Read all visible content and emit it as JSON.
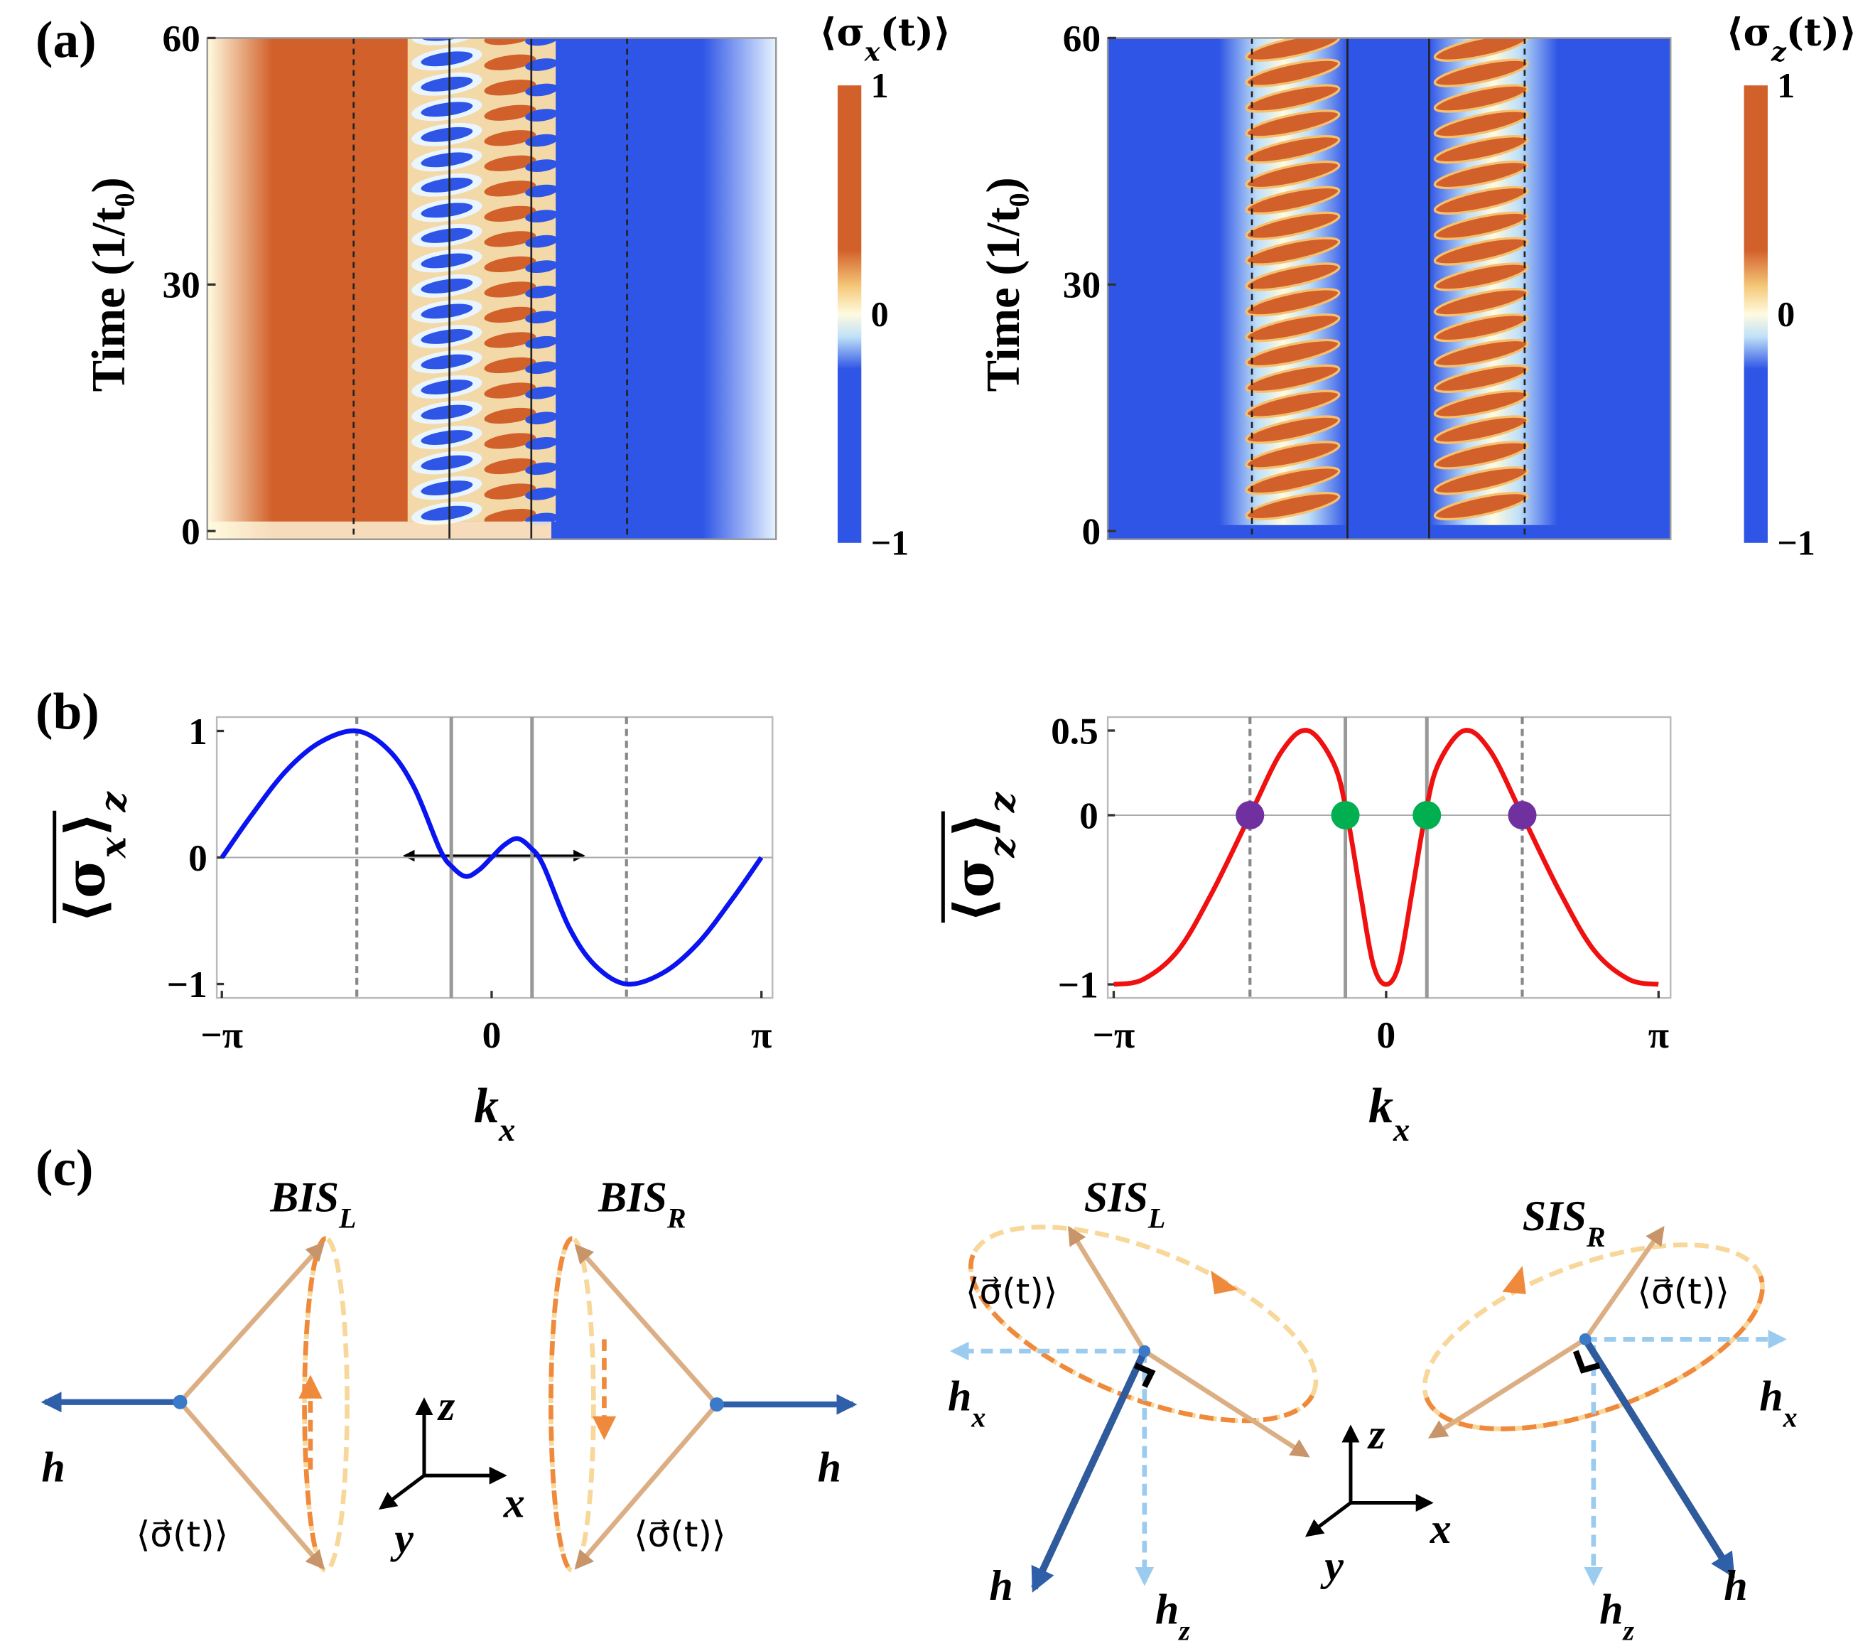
{
  "panels": [
    "(a)",
    "(b)",
    "(c)"
  ],
  "chart_data": [
    {
      "type": "heatmap",
      "ylabel": "Time (1/t₀)",
      "colorbar_title": [
        "⟨σ",
        "x",
        "(t)⟩"
      ],
      "xlim": [
        -3.25,
        3.28
      ],
      "ylim": [
        -1,
        60
      ],
      "yticks": [
        0,
        30,
        60
      ],
      "vlines": [
        {
          "x": -1.57,
          "style": "dashed"
        },
        {
          "x": -0.47,
          "style": "solid"
        },
        {
          "x": 0.47,
          "style": "solid"
        },
        {
          "x": 1.57,
          "style": "dashed"
        }
      ],
      "colorbar": {
        "lim": [
          -1,
          1
        ],
        "ticks": [
          {
            "value": -1,
            "label": "−1"
          },
          0,
          1
        ],
        "colors": [
          "#2f55e6",
          "#fffbe0",
          "#d2602b"
        ]
      }
    },
    {
      "type": "heatmap",
      "ylabel": "Time (1/t₀)",
      "colorbar_title": [
        "⟨σ",
        "z",
        "(t)⟩"
      ],
      "xlim": [
        -3.23,
        3.25
      ],
      "ylim": [
        -1,
        60
      ],
      "yticks": [
        0,
        30,
        60
      ],
      "vlines": [
        {
          "x": -1.57,
          "style": "dashed"
        },
        {
          "x": -0.47,
          "style": "solid"
        },
        {
          "x": 0.47,
          "style": "solid"
        },
        {
          "x": 1.57,
          "style": "dashed"
        }
      ],
      "colorbar": {
        "lim": [
          -1,
          1
        ],
        "ticks": [
          {
            "value": -1,
            "label": "−1"
          },
          0,
          1
        ],
        "colors": [
          "#2f55e6",
          "#fffbe0",
          "#d2602b"
        ]
      }
    },
    {
      "type": "line",
      "ylabel": [
        "⟨σ",
        "x",
        "⟩",
        "z"
      ],
      "xlabel": [
        "k",
        "x"
      ],
      "xlim": [
        -3.2,
        3.27
      ],
      "ylim": [
        -1.11,
        1.11
      ],
      "xticks": [
        {
          "value": -3.14159,
          "label": "−π"
        },
        0,
        {
          "value": 3.14159,
          "label": "π"
        }
      ],
      "yticks": [
        {
          "value": -1,
          "label": "−1"
        },
        0,
        1
      ],
      "vlines": [
        {
          "x": -1.57,
          "style": "dashed"
        },
        {
          "x": -0.47,
          "style": "solid"
        },
        {
          "x": 0.47,
          "style": "solid"
        },
        {
          "x": 1.57,
          "style": "dashed"
        }
      ],
      "color": "#0a14f0",
      "x": [
        -3.14,
        -2.8,
        -2.4,
        -2.0,
        -1.57,
        -1.2,
        -0.9,
        -0.6,
        -0.45,
        -0.3,
        -0.15,
        0,
        0.15,
        0.3,
        0.45,
        0.6,
        0.9,
        1.2,
        1.57,
        2.0,
        2.4,
        2.8,
        3.14
      ],
      "values": [
        0,
        0.33,
        0.68,
        0.91,
        1.0,
        0.85,
        0.55,
        0.06,
        -0.08,
        -0.15,
        -0.1,
        0,
        0.1,
        0.15,
        0.08,
        -0.06,
        -0.55,
        -0.85,
        -1.0,
        -0.91,
        -0.68,
        -0.33,
        0
      ]
    },
    {
      "type": "line",
      "ylabel": [
        "⟨σ",
        "z",
        "⟩",
        "z"
      ],
      "xlabel": [
        "k",
        "x"
      ],
      "xlim": [
        -3.21,
        3.28
      ],
      "ylim": [
        -1.08,
        0.58
      ],
      "xticks": [
        {
          "value": -3.14159,
          "label": "−π"
        },
        0,
        {
          "value": 3.14159,
          "label": "π"
        }
      ],
      "yticks": [
        {
          "value": -1,
          "label": "−1"
        },
        0,
        0.5
      ],
      "vlines": [
        {
          "x": -1.57,
          "style": "dashed"
        },
        {
          "x": -0.47,
          "style": "solid"
        },
        {
          "x": 0.47,
          "style": "solid"
        },
        {
          "x": 1.57,
          "style": "dashed"
        }
      ],
      "color": "#f01010",
      "x": [
        -3.14,
        -2.8,
        -2.4,
        -2.0,
        -1.57,
        -1.2,
        -0.9,
        -0.6,
        -0.45,
        -0.3,
        -0.15,
        0,
        0.15,
        0.3,
        0.45,
        0.6,
        0.9,
        1.2,
        1.57,
        2.0,
        2.4,
        2.8,
        3.14
      ],
      "values": [
        -1,
        -0.97,
        -0.8,
        -0.45,
        0,
        0.38,
        0.5,
        0.3,
        0,
        -0.45,
        -0.88,
        -1,
        -0.88,
        -0.45,
        0,
        0.3,
        0.5,
        0.38,
        0,
        -0.45,
        -0.8,
        -0.97,
        -1
      ],
      "markers": [
        {
          "x": -1.57,
          "y": 0,
          "color": "#7030a0"
        },
        {
          "x": -0.47,
          "y": 0,
          "color": "#00b050"
        },
        {
          "x": 0.47,
          "y": 0,
          "color": "#00b050"
        },
        {
          "x": 1.57,
          "y": 0,
          "color": "#7030a0"
        }
      ]
    }
  ],
  "diagram_c": {
    "parts": [
      {
        "name": [
          "BIS",
          "L"
        ],
        "sigma": "⟨σ⃗(t)⟩",
        "h": "h⃗"
      },
      {
        "name": [
          "BIS",
          "R"
        ],
        "sigma": "⟨σ⃗(t)⟩",
        "h": "h⃗"
      },
      {
        "name": [
          "SIS",
          "L"
        ],
        "sigma": "⟨σ⃗(t)⟩",
        "h": "h⃗",
        "hx": [
          "h",
          "x"
        ],
        "hz": [
          "h",
          "z"
        ]
      },
      {
        "name": [
          "SIS",
          "R"
        ],
        "sigma": "⟨σ⃗(t)⟩",
        "h": "h⃗",
        "hx": [
          "h",
          "x"
        ],
        "hz": [
          "h",
          "z"
        ]
      }
    ],
    "axes": [
      {
        "x": "x",
        "y": "y",
        "z": "z"
      },
      {
        "x": "x",
        "y": "y",
        "z": "z"
      }
    ]
  }
}
